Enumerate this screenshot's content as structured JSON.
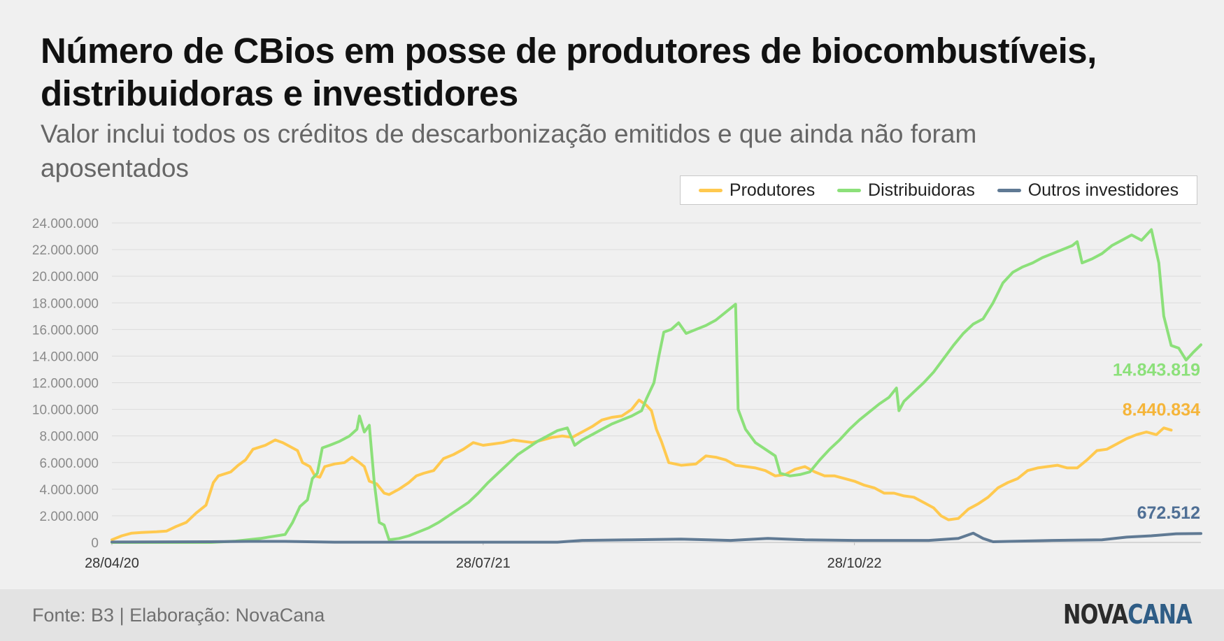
{
  "title": "Número de CBios em posse de produtores de biocombustíveis, distribuidoras e investidores",
  "subtitle": "Valor inclui todos os créditos de descarbonização emitidos e que ainda não foram aposentados",
  "source": "Fonte: B3 | Elaboração: NovaCana",
  "logo": {
    "part1": "NOVA",
    "part2": "CANA"
  },
  "colors": {
    "produtores": "#ffc94f",
    "distribuidoras": "#8ce07a",
    "outros": "#607a94"
  },
  "chart_data": {
    "type": "line",
    "title": "Número de CBios em posse de produtores de biocombustíveis, distribuidoras e investidores",
    "xlabel": "",
    "ylabel": "",
    "x_ticks": [
      "28/04/20",
      "28/07/21",
      "28/10/22"
    ],
    "x_tick_positions": [
      0,
      15,
      30
    ],
    "ylim": [
      0,
      24000000
    ],
    "y_ticks": [
      "0",
      "2.000.000",
      "4.000.000",
      "6.000.000",
      "8.000.000",
      "10.000.000",
      "12.000.000",
      "14.000.000",
      "16.000.000",
      "18.000.000",
      "20.000.000",
      "22.000.000",
      "24.000.000"
    ],
    "grid": true,
    "legend_position": "top-right",
    "x_unit": "months since 28/04/20",
    "series": [
      {
        "name": "Produtores",
        "color": "#ffc94f",
        "end_label": "8.440.834",
        "points": [
          [
            0,
            200000
          ],
          [
            0.4,
            500000
          ],
          [
            0.8,
            700000
          ],
          [
            1.2,
            750000
          ],
          [
            1.8,
            800000
          ],
          [
            2.2,
            850000
          ],
          [
            2.6,
            1200000
          ],
          [
            3.0,
            1500000
          ],
          [
            3.4,
            2200000
          ],
          [
            3.8,
            2800000
          ],
          [
            4.1,
            4500000
          ],
          [
            4.3,
            5000000
          ],
          [
            4.8,
            5300000
          ],
          [
            5.1,
            5800000
          ],
          [
            5.4,
            6200000
          ],
          [
            5.7,
            7000000
          ],
          [
            6.2,
            7300000
          ],
          [
            6.6,
            7700000
          ],
          [
            6.9,
            7500000
          ],
          [
            7.2,
            7200000
          ],
          [
            7.5,
            6900000
          ],
          [
            7.7,
            6000000
          ],
          [
            8.0,
            5700000
          ],
          [
            8.2,
            5000000
          ],
          [
            8.4,
            4900000
          ],
          [
            8.6,
            5700000
          ],
          [
            9.0,
            5900000
          ],
          [
            9.4,
            6000000
          ],
          [
            9.7,
            6400000
          ],
          [
            10.0,
            6000000
          ],
          [
            10.2,
            5700000
          ],
          [
            10.4,
            4600000
          ],
          [
            10.7,
            4400000
          ],
          [
            11.0,
            3700000
          ],
          [
            11.2,
            3600000
          ],
          [
            11.6,
            4000000
          ],
          [
            12.0,
            4500000
          ],
          [
            12.3,
            5000000
          ],
          [
            12.6,
            5200000
          ],
          [
            13.0,
            5400000
          ],
          [
            13.4,
            6300000
          ],
          [
            13.8,
            6600000
          ],
          [
            14.2,
            7000000
          ],
          [
            14.6,
            7500000
          ],
          [
            15.0,
            7300000
          ],
          [
            15.4,
            7400000
          ],
          [
            15.8,
            7500000
          ],
          [
            16.2,
            7700000
          ],
          [
            16.6,
            7600000
          ],
          [
            17.0,
            7500000
          ],
          [
            17.4,
            7700000
          ],
          [
            17.8,
            7900000
          ],
          [
            18.2,
            8000000
          ],
          [
            18.6,
            7900000
          ],
          [
            19.0,
            8300000
          ],
          [
            19.4,
            8700000
          ],
          [
            19.8,
            9200000
          ],
          [
            20.2,
            9400000
          ],
          [
            20.6,
            9500000
          ],
          [
            21.0,
            10000000
          ],
          [
            21.3,
            10700000
          ],
          [
            21.6,
            10300000
          ],
          [
            21.8,
            9900000
          ],
          [
            22.0,
            8500000
          ],
          [
            22.2,
            7600000
          ],
          [
            22.5,
            6000000
          ],
          [
            23.0,
            5800000
          ],
          [
            23.6,
            5900000
          ],
          [
            24.0,
            6500000
          ],
          [
            24.4,
            6400000
          ],
          [
            24.8,
            6200000
          ],
          [
            25.2,
            5800000
          ],
          [
            25.6,
            5700000
          ],
          [
            26.0,
            5600000
          ],
          [
            26.4,
            5400000
          ],
          [
            26.8,
            5000000
          ],
          [
            27.2,
            5100000
          ],
          [
            27.6,
            5500000
          ],
          [
            28.0,
            5700000
          ],
          [
            28.4,
            5300000
          ],
          [
            28.8,
            5000000
          ],
          [
            29.2,
            5000000
          ],
          [
            29.6,
            4800000
          ],
          [
            30.0,
            4600000
          ],
          [
            30.4,
            4300000
          ],
          [
            30.8,
            4100000
          ],
          [
            31.2,
            3700000
          ],
          [
            31.6,
            3700000
          ],
          [
            32.0,
            3500000
          ],
          [
            32.4,
            3400000
          ],
          [
            32.8,
            3000000
          ],
          [
            33.2,
            2600000
          ],
          [
            33.5,
            2000000
          ],
          [
            33.8,
            1700000
          ],
          [
            34.2,
            1800000
          ],
          [
            34.6,
            2500000
          ],
          [
            35.0,
            2900000
          ],
          [
            35.4,
            3400000
          ],
          [
            35.8,
            4100000
          ],
          [
            36.2,
            4500000
          ],
          [
            36.6,
            4800000
          ],
          [
            37.0,
            5400000
          ],
          [
            37.4,
            5600000
          ],
          [
            37.8,
            5700000
          ],
          [
            38.2,
            5800000
          ],
          [
            38.6,
            5600000
          ],
          [
            39.0,
            5600000
          ],
          [
            39.4,
            6200000
          ],
          [
            39.8,
            6900000
          ],
          [
            40.2,
            7000000
          ],
          [
            40.6,
            7400000
          ],
          [
            41.0,
            7800000
          ],
          [
            41.4,
            8100000
          ],
          [
            41.8,
            8300000
          ],
          [
            42.2,
            8100000
          ],
          [
            42.5,
            8600000
          ],
          [
            42.8,
            8440834
          ]
        ]
      },
      {
        "name": "Distribuidoras",
        "color": "#8ce07a",
        "end_label": "14.843.819",
        "points": [
          [
            0,
            0
          ],
          [
            2,
            0
          ],
          [
            4,
            0
          ],
          [
            5,
            100000
          ],
          [
            6,
            300000
          ],
          [
            7,
            600000
          ],
          [
            7.3,
            1500000
          ],
          [
            7.6,
            2700000
          ],
          [
            7.9,
            3200000
          ],
          [
            8.1,
            4800000
          ],
          [
            8.3,
            5200000
          ],
          [
            8.5,
            7100000
          ],
          [
            8.8,
            7300000
          ],
          [
            9.2,
            7600000
          ],
          [
            9.6,
            8000000
          ],
          [
            9.9,
            8500000
          ],
          [
            10.0,
            9500000
          ],
          [
            10.2,
            8300000
          ],
          [
            10.4,
            8800000
          ],
          [
            10.6,
            4500000
          ],
          [
            10.8,
            1500000
          ],
          [
            11.0,
            1300000
          ],
          [
            11.2,
            200000
          ],
          [
            11.6,
            300000
          ],
          [
            12.0,
            500000
          ],
          [
            12.4,
            800000
          ],
          [
            12.8,
            1100000
          ],
          [
            13.2,
            1500000
          ],
          [
            13.6,
            2000000
          ],
          [
            14.0,
            2500000
          ],
          [
            14.4,
            3000000
          ],
          [
            14.8,
            3700000
          ],
          [
            15.2,
            4500000
          ],
          [
            15.6,
            5200000
          ],
          [
            16.0,
            5900000
          ],
          [
            16.4,
            6600000
          ],
          [
            16.8,
            7100000
          ],
          [
            17.2,
            7600000
          ],
          [
            17.6,
            8000000
          ],
          [
            18.0,
            8400000
          ],
          [
            18.4,
            8600000
          ],
          [
            18.7,
            7300000
          ],
          [
            19.0,
            7700000
          ],
          [
            19.4,
            8100000
          ],
          [
            19.8,
            8500000
          ],
          [
            20.2,
            8900000
          ],
          [
            20.6,
            9200000
          ],
          [
            21.0,
            9500000
          ],
          [
            21.4,
            9900000
          ],
          [
            21.6,
            10800000
          ],
          [
            21.9,
            12000000
          ],
          [
            22.1,
            14000000
          ],
          [
            22.3,
            15800000
          ],
          [
            22.6,
            16000000
          ],
          [
            22.9,
            16500000
          ],
          [
            23.2,
            15700000
          ],
          [
            23.6,
            16000000
          ],
          [
            24.0,
            16300000
          ],
          [
            24.4,
            16700000
          ],
          [
            24.8,
            17300000
          ],
          [
            25.2,
            17900000
          ],
          [
            25.3,
            10000000
          ],
          [
            25.6,
            8500000
          ],
          [
            26.0,
            7500000
          ],
          [
            26.4,
            7000000
          ],
          [
            26.8,
            6500000
          ],
          [
            27.0,
            5200000
          ],
          [
            27.4,
            5000000
          ],
          [
            27.8,
            5100000
          ],
          [
            28.2,
            5300000
          ],
          [
            28.6,
            6200000
          ],
          [
            29.0,
            7000000
          ],
          [
            29.4,
            7700000
          ],
          [
            29.8,
            8500000
          ],
          [
            30.2,
            9200000
          ],
          [
            30.6,
            9800000
          ],
          [
            31.0,
            10400000
          ],
          [
            31.4,
            10900000
          ],
          [
            31.7,
            11600000
          ],
          [
            31.8,
            9900000
          ],
          [
            32.0,
            10600000
          ],
          [
            32.4,
            11300000
          ],
          [
            32.8,
            12000000
          ],
          [
            33.2,
            12800000
          ],
          [
            33.6,
            13800000
          ],
          [
            34.0,
            14800000
          ],
          [
            34.4,
            15700000
          ],
          [
            34.8,
            16400000
          ],
          [
            35.2,
            16800000
          ],
          [
            35.6,
            18000000
          ],
          [
            36.0,
            19500000
          ],
          [
            36.4,
            20300000
          ],
          [
            36.8,
            20700000
          ],
          [
            37.2,
            21000000
          ],
          [
            37.6,
            21400000
          ],
          [
            38.0,
            21700000
          ],
          [
            38.4,
            22000000
          ],
          [
            38.8,
            22300000
          ],
          [
            39.0,
            22600000
          ],
          [
            39.2,
            21000000
          ],
          [
            39.6,
            21300000
          ],
          [
            40.0,
            21700000
          ],
          [
            40.4,
            22300000
          ],
          [
            40.8,
            22700000
          ],
          [
            41.2,
            23100000
          ],
          [
            41.6,
            22700000
          ],
          [
            42.0,
            23500000
          ],
          [
            42.3,
            21000000
          ],
          [
            42.5,
            17000000
          ],
          [
            42.8,
            14800000
          ],
          [
            43.1,
            14600000
          ],
          [
            43.4,
            13700000
          ],
          [
            43.7,
            14300000
          ],
          [
            44.0,
            14843819
          ]
        ]
      },
      {
        "name": "Outros investidores",
        "color": "#607a94",
        "end_label": "672.512",
        "points": [
          [
            0,
            30000
          ],
          [
            4,
            50000
          ],
          [
            5.5,
            80000
          ],
          [
            7,
            80000
          ],
          [
            9,
            20000
          ],
          [
            18,
            20000
          ],
          [
            19,
            150000
          ],
          [
            21,
            200000
          ],
          [
            23,
            250000
          ],
          [
            25,
            150000
          ],
          [
            26.5,
            300000
          ],
          [
            28,
            200000
          ],
          [
            30,
            150000
          ],
          [
            33,
            150000
          ],
          [
            34.2,
            300000
          ],
          [
            34.8,
            700000
          ],
          [
            35.2,
            300000
          ],
          [
            35.6,
            50000
          ],
          [
            38,
            150000
          ],
          [
            40,
            200000
          ],
          [
            41,
            400000
          ],
          [
            42,
            500000
          ],
          [
            43,
            650000
          ],
          [
            44,
            672512
          ]
        ]
      }
    ]
  }
}
